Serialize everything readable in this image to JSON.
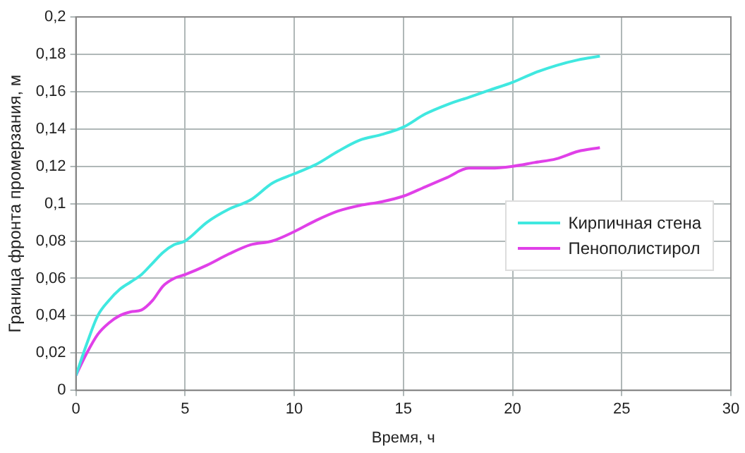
{
  "chart_data": {
    "type": "line",
    "xlabel": "Время, ч",
    "ylabel": "Граница фронта промерзания, м",
    "xlim": [
      0,
      30
    ],
    "xticks": [
      0,
      5,
      10,
      15,
      20,
      25,
      30
    ],
    "ylim": [
      0,
      0.2
    ],
    "yticks": [
      0,
      {
        "value": 0.02,
        "label": "0,02"
      },
      {
        "value": 0.04,
        "label": "0,04"
      },
      {
        "value": 0.06,
        "label": "0,06"
      },
      {
        "value": 0.08,
        "label": "0,08"
      },
      {
        "value": 0.1,
        "label": "0,1"
      },
      {
        "value": 0.12,
        "label": "0,12"
      },
      {
        "value": 0.14,
        "label": "0,14"
      },
      {
        "value": 0.16,
        "label": "0,16"
      },
      {
        "value": 0.18,
        "label": "0,18"
      },
      {
        "value": 0.2,
        "label": "0,2"
      }
    ],
    "grid": true,
    "legend": "right",
    "marker": "none",
    "line_style": "solid",
    "x": [
      0,
      0.5,
      1,
      1.5,
      2,
      2.5,
      3,
      3.5,
      4,
      4.5,
      5,
      6,
      7,
      8,
      9,
      10,
      11,
      12,
      13,
      14,
      15,
      16,
      17,
      18,
      19,
      20,
      21,
      22,
      23,
      24
    ],
    "series": [
      {
        "name": "Кирпичная стена",
        "color": "#40e8e0",
        "values": [
          0.008,
          0.025,
          0.04,
          0.048,
          0.054,
          0.058,
          0.062,
          0.068,
          0.074,
          0.078,
          0.08,
          0.09,
          0.097,
          0.102,
          0.111,
          0.116,
          0.121,
          0.128,
          0.134,
          0.137,
          0.141,
          0.148,
          0.153,
          0.157,
          0.161,
          0.165,
          0.17,
          0.174,
          0.177,
          0.179
        ]
      },
      {
        "name": "Пенополистирол",
        "color": "#e040e8",
        "values": [
          0.008,
          0.02,
          0.03,
          0.036,
          0.04,
          0.042,
          0.043,
          0.048,
          0.056,
          0.06,
          0.062,
          0.067,
          0.073,
          0.078,
          0.08,
          0.085,
          0.091,
          0.096,
          0.099,
          0.101,
          0.104,
          0.109,
          0.114,
          0.119,
          0.119,
          0.12,
          0.122,
          0.124,
          0.128,
          0.13
        ]
      }
    ]
  }
}
